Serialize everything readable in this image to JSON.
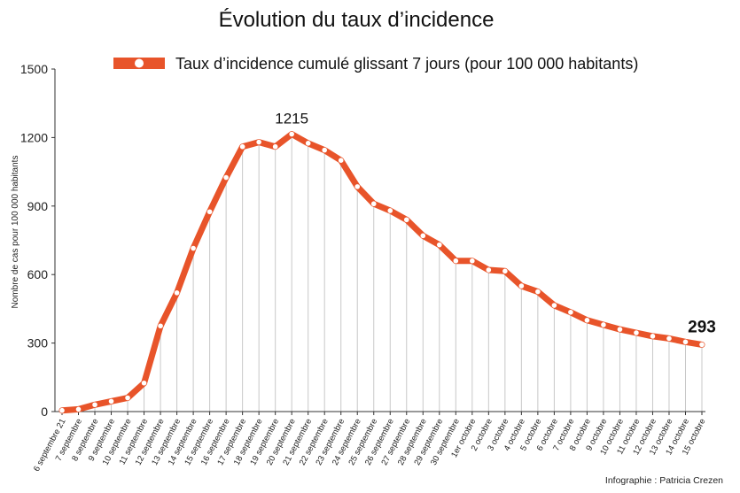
{
  "chart_data": {
    "type": "line",
    "title": "Évolution du taux d’incidence",
    "legend": "Taux d’incidence cumulé glissant 7 jours (pour 100 000 habitants)",
    "legend_position": "top",
    "ylabel": "Nombre de cas pour 100 000 habitants",
    "xlabel": "",
    "ylim": [
      0,
      1500
    ],
    "yticks": [
      "0",
      "300",
      "600",
      "900",
      "1200",
      "1500"
    ],
    "grid": "vertical",
    "colors": {
      "line": "#e8542a",
      "marker": "#ffffff",
      "axis": "#333333",
      "grid": "#c8c8c8"
    },
    "categories": [
      "6 septembre 21",
      "7 septembre",
      "8 septembre",
      "9 septembre",
      "10 septembre",
      "11 septembre",
      "12 septembre",
      "13 septembre",
      "14 septembre",
      "15 septembre",
      "16 septembre",
      "17 septembre",
      "18 septembre",
      "19 septembre",
      "20 septembre",
      "21 septembre",
      "22 septembre",
      "23 septembre",
      "24 septembre",
      "25 septembre",
      "26 septembre",
      "27 septembre",
      "28 septembre",
      "29 septembre",
      "30 septembre",
      "1er octobre",
      "2 octobre",
      "3 octobre",
      "4 octobre",
      "5 octobre",
      "6 octobre",
      "7 octobre",
      "8 octobre",
      "9 octobre",
      "10 octobre",
      "11 octobre",
      "12 octobre",
      "13 octobre",
      "14 octobre",
      "15 octobre"
    ],
    "values": [
      5,
      10,
      30,
      45,
      60,
      125,
      375,
      520,
      715,
      875,
      1025,
      1160,
      1180,
      1160,
      1215,
      1175,
      1145,
      1100,
      985,
      910,
      880,
      840,
      770,
      730,
      660,
      660,
      620,
      615,
      550,
      525,
      465,
      435,
      400,
      380,
      360,
      345,
      330,
      320,
      305,
      293
    ],
    "annotations": [
      {
        "index": 14,
        "text": "1215",
        "bold": false
      },
      {
        "index": 39,
        "text": "293",
        "bold": true
      }
    ],
    "credit": "Infographie : Patricia Crezen"
  }
}
